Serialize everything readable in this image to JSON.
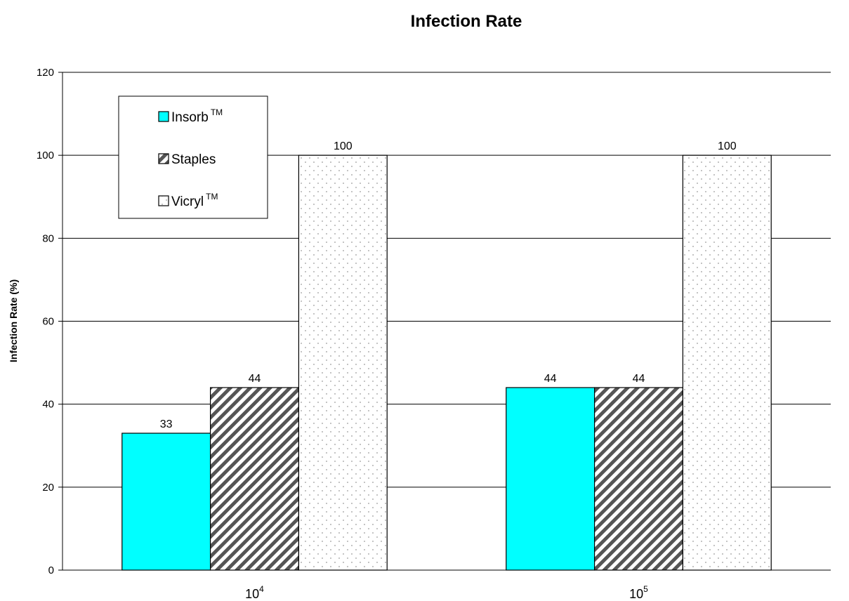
{
  "chart_data": {
    "type": "bar",
    "title": "Infection Rate",
    "xlabel": "",
    "ylabel": "Infection Rate (%)",
    "categories": [
      {
        "base": "10",
        "exp": "4"
      },
      {
        "base": "10",
        "exp": "5"
      }
    ],
    "series": [
      {
        "name": "Insorb",
        "mark": "TM",
        "values": [
          33,
          44
        ],
        "fill": "#00ffff",
        "pattern": "solid"
      },
      {
        "name": "Staples",
        "mark": "",
        "values": [
          44,
          44
        ],
        "fill": "#ffffff",
        "pattern": "diagonal"
      },
      {
        "name": "Vicryl",
        "mark": "TM",
        "values": [
          100,
          100
        ],
        "fill": "#ffffff",
        "pattern": "dots"
      }
    ],
    "ylim": [
      0,
      120
    ],
    "yticks": [
      0,
      20,
      40,
      60,
      80,
      100,
      120
    ],
    "grid": true,
    "legend_position": "top-left"
  }
}
